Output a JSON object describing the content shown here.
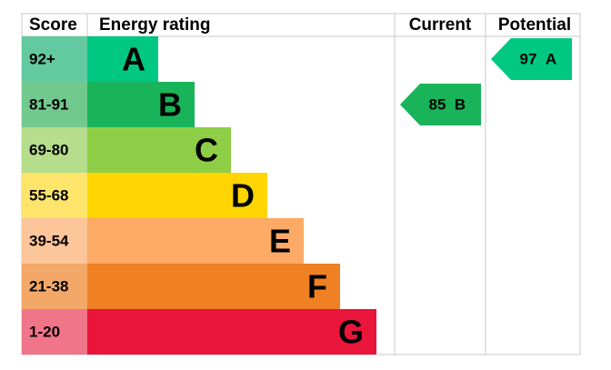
{
  "header": {
    "score": "Score",
    "rating": "Energy rating",
    "current": "Current",
    "potential": "Potential"
  },
  "rows": [
    {
      "score": "92+",
      "band": "A",
      "color": "#00c781",
      "score_color": "#63c9a0"
    },
    {
      "score": "81-91",
      "band": "B",
      "color": "#19b459",
      "score_color": "#72c98e"
    },
    {
      "score": "69-80",
      "band": "C",
      "color": "#8dce46",
      "score_color": "#b6dd8b"
    },
    {
      "score": "55-68",
      "band": "D",
      "color": "#ffd500",
      "score_color": "#fde46b"
    },
    {
      "score": "39-54",
      "band": "E",
      "color": "#fcaa65",
      "score_color": "#fdc59a"
    },
    {
      "score": "21-38",
      "band": "F",
      "color": "#ef8023",
      "score_color": "#f4a867"
    },
    {
      "score": "1-20",
      "band": "G",
      "color": "#e9153b",
      "score_color": "#f07589"
    }
  ],
  "current": {
    "value": 85,
    "band": "B",
    "row": 1,
    "color": "#19b459"
  },
  "potential": {
    "value": 97,
    "band": "A",
    "row": 0,
    "color": "#00c781"
  }
}
